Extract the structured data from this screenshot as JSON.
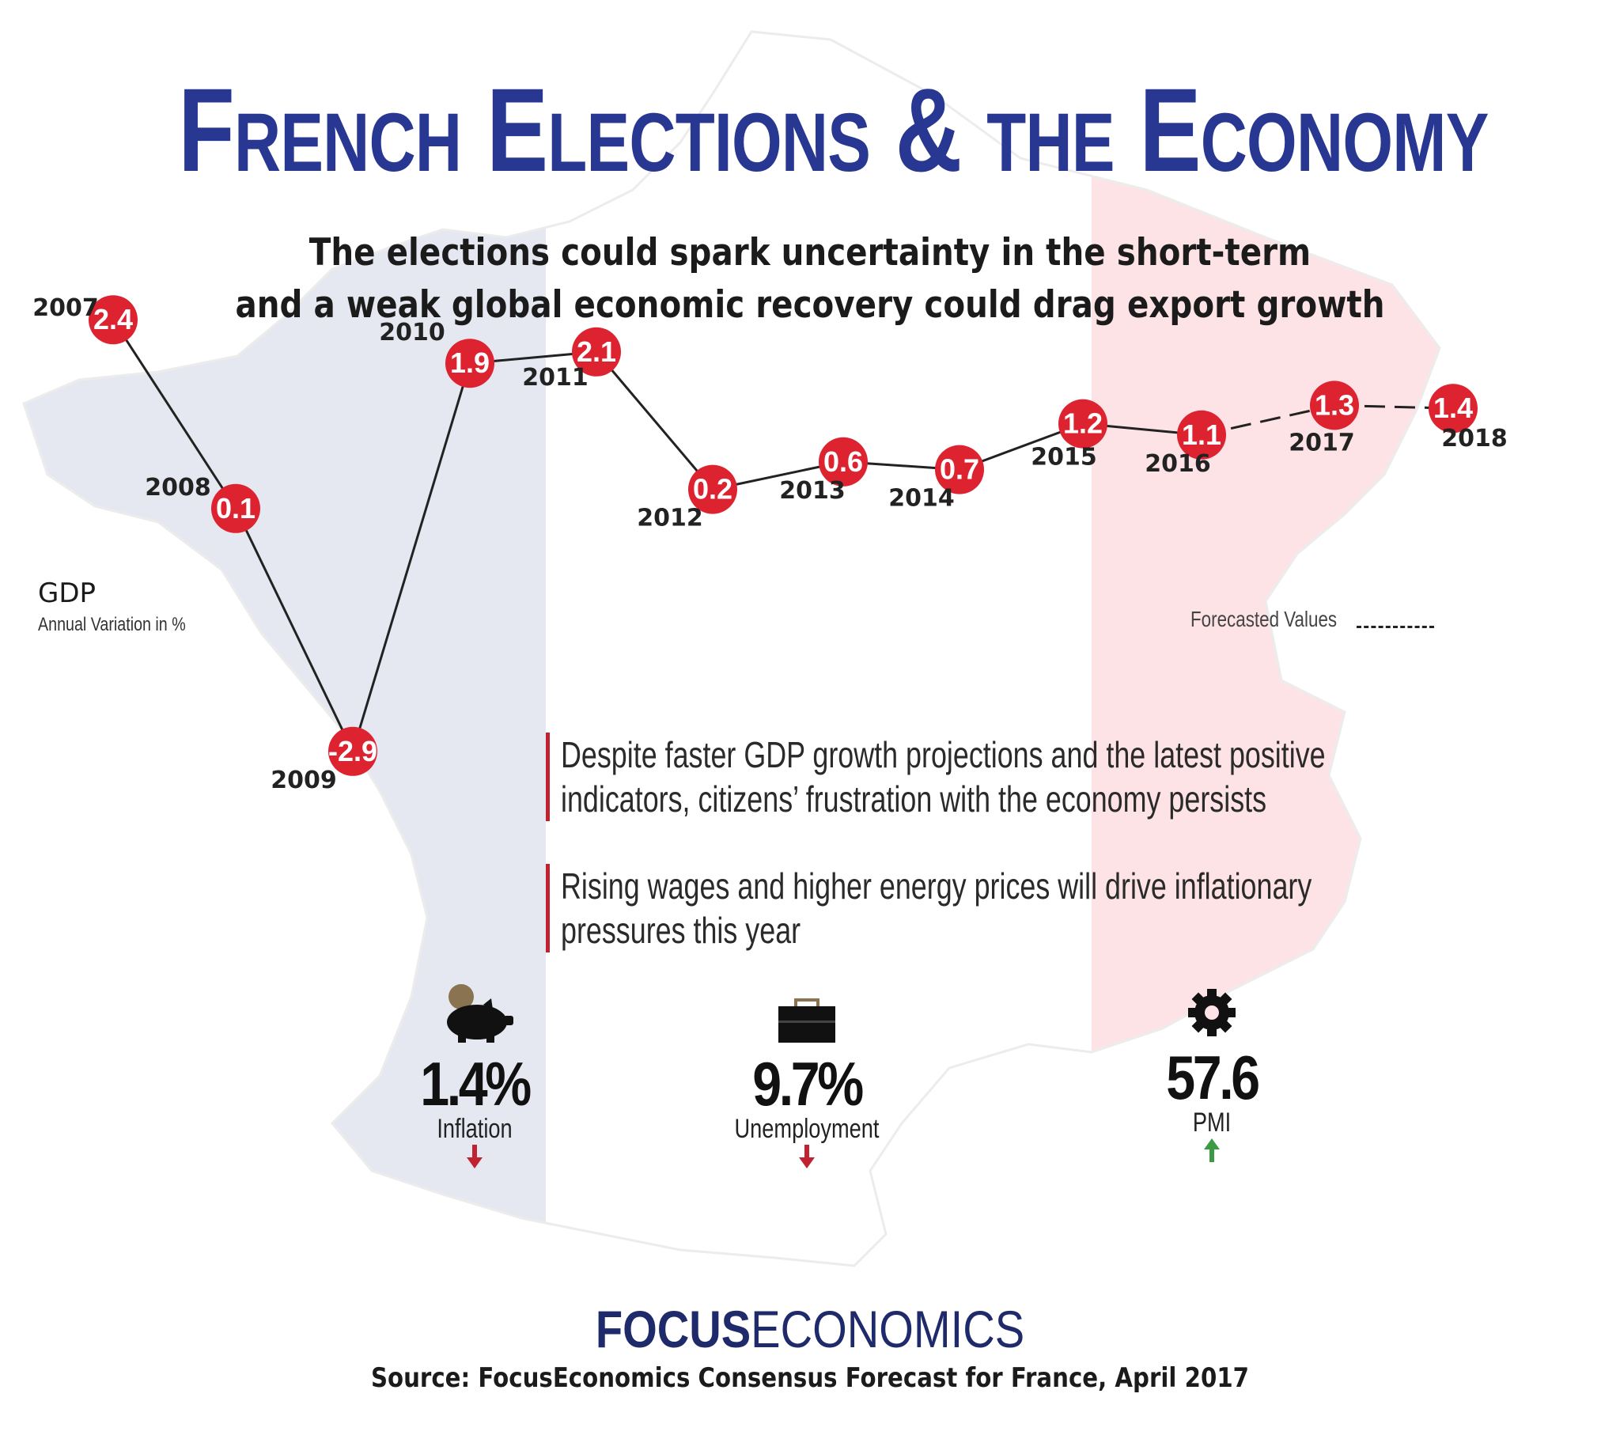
{
  "title": "French Elections & the Economy",
  "subtitle_lines": [
    "The elections could spark uncertainty in the short-term",
    "and a weak global economic recovery could drag export growth"
  ],
  "chart_data": {
    "type": "line",
    "title": "GDP",
    "ylabel": "Annual Variation in %",
    "x": [
      "2007",
      "2008",
      "2009",
      "2010",
      "2011",
      "2012",
      "2013",
      "2014",
      "2015",
      "2016",
      "2017",
      "2018"
    ],
    "values": [
      2.4,
      0.1,
      -2.9,
      1.9,
      2.1,
      0.2,
      0.6,
      0.7,
      1.2,
      1.1,
      1.3,
      1.4
    ],
    "value_labels": [
      "2.4",
      "0.1",
      "-2.9",
      "1.9",
      "2.1",
      "0.2",
      "0.6",
      "0.7",
      "1.2",
      "1.1",
      "1.3",
      "1.4"
    ],
    "forecast_from": "2016",
    "legend": "Forecasted Values",
    "marker_color": "#dd2230",
    "line_color": "#222222"
  },
  "notes": [
    "Despite faster GDP growth projections and the latest positive indicators, citizens’ frustration with the economy persists",
    "Rising wages and higher energy prices will drive inflationary pressures this year"
  ],
  "stats": [
    {
      "value": "1.4%",
      "label": "Inflation",
      "trend": "down",
      "icon": "piggy-bank-icon"
    },
    {
      "value": "9.7%",
      "label": "Unemployment",
      "trend": "down",
      "icon": "briefcase-icon"
    },
    {
      "value": "57.6",
      "label": "PMI",
      "trend": "up",
      "icon": "gear-icon"
    }
  ],
  "brand": {
    "bold": "FOCUS",
    "light": "ECONOMICS"
  },
  "source": "Source: FocusEconomics Consensus Forecast for France, April 2017",
  "colors": {
    "blue_band": "#e6e8f1",
    "red_band": "#fde3e6",
    "title": "#283791",
    "down_arrow": "#c0232f",
    "up_arrow": "#3c9a45"
  }
}
